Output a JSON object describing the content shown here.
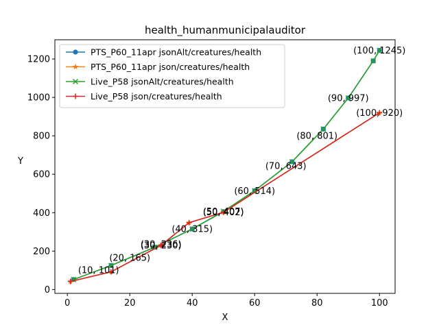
{
  "chart_data": {
    "type": "line",
    "title": "health_humanmunicipalauditor",
    "xlabel": "X",
    "ylabel": "Y",
    "xlim": [
      -4,
      105
    ],
    "ylim": [
      -20,
      1300
    ],
    "xticks": [
      0,
      20,
      40,
      60,
      80,
      100
    ],
    "yticks": [
      0,
      200,
      400,
      600,
      800,
      1000,
      1200
    ],
    "grid": false,
    "legend_position": "top-left",
    "series": [
      {
        "name": "PTS_P60_11apr jsonAlt/creatures/health",
        "color": "#1f77b4",
        "marker": "circle",
        "x": [
          2,
          14,
          28,
          40,
          50,
          60,
          72,
          82,
          90,
          98,
          100
        ],
        "y": [
          52,
          125,
          220,
          315,
          405,
          514,
          665,
          835,
          997,
          1190,
          1245
        ]
      },
      {
        "name": "PTS_P60_11apr json/creatures/health",
        "color": "#ff7f0e",
        "marker": "star",
        "x": [
          1,
          14,
          30,
          39,
          50,
          100
        ],
        "y": [
          42,
          92,
          230,
          348,
          402,
          920
        ]
      },
      {
        "name": "Live_P58 jsonAlt/creatures/health",
        "color": "#2ca02c",
        "marker": "x",
        "x": [
          2,
          14,
          28,
          40,
          50,
          60,
          72,
          82,
          90,
          98,
          100
        ],
        "y": [
          52,
          125,
          220,
          315,
          407,
          514,
          665,
          835,
          997,
          1190,
          1245
        ]
      },
      {
        "name": "Live_P58 json/creatures/health",
        "color": "#d62728",
        "marker": "plus",
        "x": [
          1,
          14,
          30,
          39,
          50,
          100
        ],
        "y": [
          42,
          92,
          230,
          348,
          402,
          920
        ]
      }
    ],
    "annotations": [
      {
        "text": "(10, 101)",
        "x": 10,
        "y": 101
      },
      {
        "text": "(20, 165)",
        "x": 20,
        "y": 165
      },
      {
        "text": "(30, 236)",
        "x": 30,
        "y": 236
      },
      {
        "text": "(30, 230)",
        "x": 30,
        "y": 230
      },
      {
        "text": "(40, 315)",
        "x": 40,
        "y": 315
      },
      {
        "text": "(50, 407)",
        "x": 50,
        "y": 407
      },
      {
        "text": "(50, 402)",
        "x": 50,
        "y": 402
      },
      {
        "text": "(60, 514)",
        "x": 60,
        "y": 514
      },
      {
        "text": "(70, 643)",
        "x": 70,
        "y": 643
      },
      {
        "text": "(80, 801)",
        "x": 80,
        "y": 801
      },
      {
        "text": "(90, 997)",
        "x": 90,
        "y": 997
      },
      {
        "text": "(100, 920)",
        "x": 100,
        "y": 920
      },
      {
        "text": "(100, 1245)",
        "x": 100,
        "y": 1245
      }
    ]
  }
}
